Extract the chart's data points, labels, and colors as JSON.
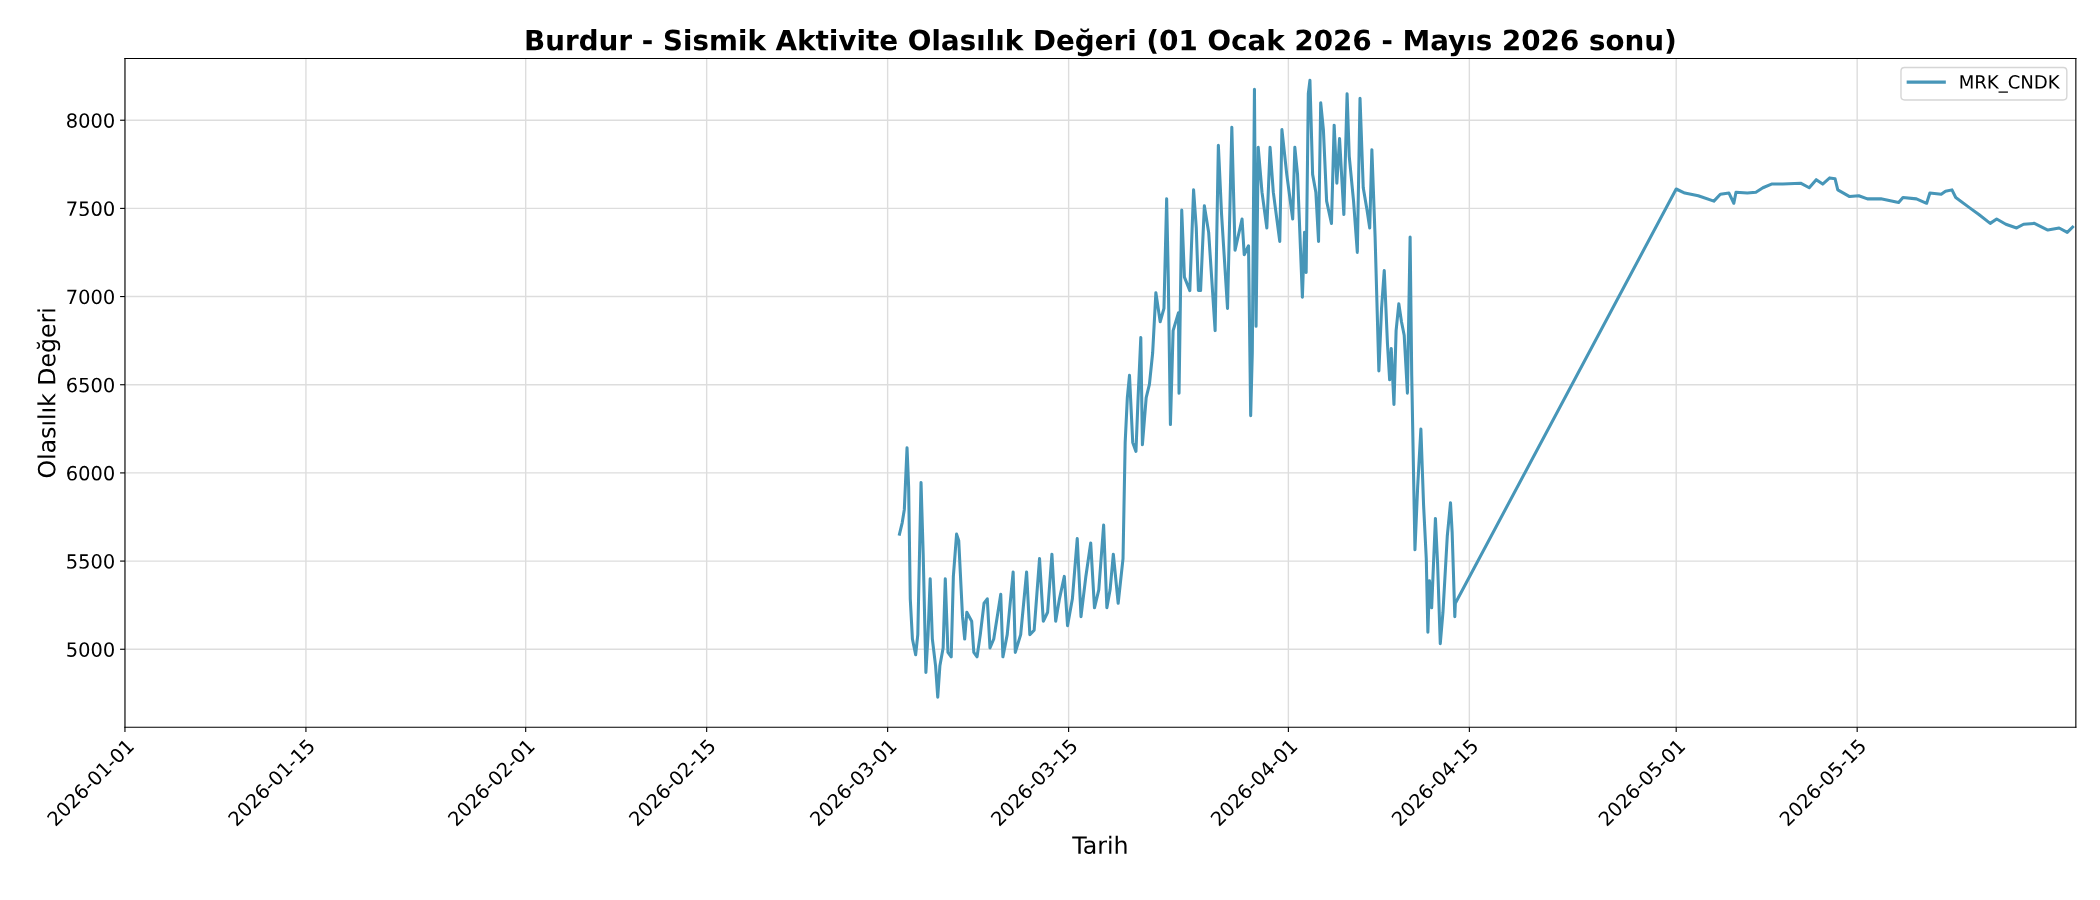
{
  "chart_data": {
    "type": "line",
    "title": "Burdur - Sismik Aktivite Olasılık Değeri (01 Ocak 2026 - Mayıs 2026 sonu)",
    "xlabel": "Tarih",
    "ylabel": "Olasılık Değeri",
    "xlim": [
      "2026-01-01",
      "2026-05-31T22:00"
    ],
    "ylim": [
      4558,
      8350
    ],
    "xticks": [
      "2026-01-01",
      "2026-01-15",
      "2026-02-01",
      "2026-02-15",
      "2026-03-01",
      "2026-03-15",
      "2026-04-01",
      "2026-04-15",
      "2026-05-01",
      "2026-05-15"
    ],
    "yticks": [
      5000,
      5500,
      6000,
      6500,
      7000,
      7500,
      8000
    ],
    "grid": true,
    "legend": "top right",
    "line_style": "solid",
    "marker": "none",
    "series": [
      {
        "name": "MRK_CNDK",
        "color": "#4796b8",
        "x": [
          "2026-03-01T22:00",
          "2026-03-02T03:00",
          "2026-03-02T07:00",
          "2026-03-02T12:00",
          "2026-03-02T15:00",
          "2026-03-02T18:00",
          "2026-03-02T22:00",
          "2026-03-03T04:00",
          "2026-03-03T08:00",
          "2026-03-03T14:00",
          "2026-03-03T18:00",
          "2026-03-03T23:00",
          "2026-03-04T03:00",
          "2026-03-04T07:00",
          "2026-03-04T11:00",
          "2026-03-04T17:00",
          "2026-03-04T21:00",
          "2026-03-05T01:00",
          "2026-03-05T07:00",
          "2026-03-05T11:00",
          "2026-03-05T16:00",
          "2026-03-05T22:00",
          "2026-03-06T02:00",
          "2026-03-06T08:00",
          "2026-03-06T12:00",
          "2026-03-06T19:00",
          "2026-03-06T23:00",
          "2026-03-07T03:00",
          "2026-03-07T12:00",
          "2026-03-07T16:00",
          "2026-03-07T22:00",
          "2026-03-08T04:00",
          "2026-03-08T11:00",
          "2026-03-08T17:00",
          "2026-03-08T22:00",
          "2026-03-09T05:00",
          "2026-03-09T18:00",
          "2026-03-09T22:00",
          "2026-03-10T06:00",
          "2026-03-10T17:00",
          "2026-03-10T21:00",
          "2026-03-11T07:00",
          "2026-03-11T18:00",
          "2026-03-12T00:00",
          "2026-03-12T08:00",
          "2026-03-12T18:00",
          "2026-03-13T01:00",
          "2026-03-13T09:00",
          "2026-03-13T17:00",
          "2026-03-14T00:00",
          "2026-03-14T07:00",
          "2026-03-14T16:00",
          "2026-03-14T22:00",
          "2026-03-15T07:00",
          "2026-03-15T16:00",
          "2026-03-15T23:00",
          "2026-03-16T08:00",
          "2026-03-16T17:00",
          "2026-03-17T00:00",
          "2026-03-17T08:00",
          "2026-03-17T17:00",
          "2026-03-17T23:00",
          "2026-03-18T05:00",
          "2026-03-18T11:00",
          "2026-03-18T20:00",
          "2026-03-19T05:00",
          "2026-03-19T09:00",
          "2026-03-19T13:00",
          "2026-03-19T17:00",
          "2026-03-19T23:00",
          "2026-03-20T05:00",
          "2026-03-20T09:00",
          "2026-03-20T14:00",
          "2026-03-20T17:00",
          "2026-03-21T00:00",
          "2026-03-21T06:00",
          "2026-03-21T12:00",
          "2026-03-21T18:00",
          "2026-03-22T02:00",
          "2026-03-22T09:00",
          "2026-03-22T14:00",
          "2026-03-22T17:00",
          "2026-03-22T21:00",
          "2026-03-23T02:00",
          "2026-03-23T12:00",
          "2026-03-23T13:00",
          "2026-03-23T18:00",
          "2026-03-23T23:00",
          "2026-03-24T09:00",
          "2026-03-24T16:00",
          "2026-03-24T21:00",
          "2026-03-25T01:00",
          "2026-03-25T05:00",
          "2026-03-25T12:00",
          "2026-03-25T20:00",
          "2026-03-26T08:00",
          "2026-03-26T14:00",
          "2026-03-26T20:00",
          "2026-03-27T07:00",
          "2026-03-27T15:00",
          "2026-03-27T21:00",
          "2026-03-28T10:00",
          "2026-03-28T14:00",
          "2026-03-28T22:00",
          "2026-03-29T02:00",
          "2026-03-29T05:00",
          "2026-03-29T09:00",
          "2026-03-29T12:00",
          "2026-03-29T16:00",
          "2026-03-29T23:00",
          "2026-03-30T08:00",
          "2026-03-30T14:00",
          "2026-03-30T20:00",
          "2026-03-31T08:00",
          "2026-03-31T12:00",
          "2026-03-31T21:00",
          "2026-04-01T08:00",
          "2026-04-01T12:00",
          "2026-04-01T17:00",
          "2026-04-02T02:00",
          "2026-04-02T06:00",
          "2026-04-02T09:00",
          "2026-04-02T13:00",
          "2026-04-02T16:00",
          "2026-04-02T21:00",
          "2026-04-03T03:00",
          "2026-04-03T08:00",
          "2026-04-03T12:00",
          "2026-04-03T17:00",
          "2026-04-03T23:00",
          "2026-04-04T08:00",
          "2026-04-04T13:00",
          "2026-04-04T18:00",
          "2026-04-04T23:00",
          "2026-04-05T07:00",
          "2026-04-05T13:00",
          "2026-04-05T17:00",
          "2026-04-06T01:00",
          "2026-04-06T08:00",
          "2026-04-06T13:00",
          "2026-04-06T19:00",
          "2026-04-07T02:00",
          "2026-04-07T07:00",
          "2026-04-07T11:00",
          "2026-04-07T17:00",
          "2026-04-08T00:00",
          "2026-04-08T05:00",
          "2026-04-08T10:00",
          "2026-04-08T16:00",
          "2026-04-08T20:00",
          "2026-04-08T23:00",
          "2026-04-09T04:00",
          "2026-04-09T08:00",
          "2026-04-09T13:00",
          "2026-04-09T18:00",
          "2026-04-09T23:00",
          "2026-04-10T05:00",
          "2026-04-10T10:00",
          "2026-04-10T13:00",
          "2026-04-10T19:00",
          "2026-04-11T00:00",
          "2026-04-11T06:00",
          "2026-04-11T11:00",
          "2026-04-11T16:00",
          "2026-04-11T19:00",
          "2026-04-11T22:00",
          "2026-04-12T02:00",
          "2026-04-12T09:00",
          "2026-04-12T13:00",
          "2026-04-12T18:00",
          "2026-04-12T23:00",
          "2026-04-13T07:00",
          "2026-04-13T13:00",
          "2026-04-13T16:00",
          "2026-04-13T21:00",
          "2026-04-13T22:00",
          "2026-05-01T00:00",
          "2026-05-01T16:00",
          "2026-05-02T17:00",
          "2026-05-03T22:00",
          "2026-05-04T10:00",
          "2026-05-05T02:00",
          "2026-05-05T11:00",
          "2026-05-05T15:00",
          "2026-05-06T12:00",
          "2026-05-07T04:00",
          "2026-05-07T17:00",
          "2026-05-08T09:00",
          "2026-05-09T06:00",
          "2026-05-10T15:00",
          "2026-05-11T07:00",
          "2026-05-11T20:00",
          "2026-05-12T08:00",
          "2026-05-12T21:00",
          "2026-05-13T07:00",
          "2026-05-13T12:00",
          "2026-05-14T10:00",
          "2026-05-15T03:00",
          "2026-05-15T19:00",
          "2026-05-16T20:00",
          "2026-05-18T05:00",
          "2026-05-18T13:00",
          "2026-05-19T14:00",
          "2026-05-20T09:00",
          "2026-05-20T15:00",
          "2026-05-21T12:00",
          "2026-05-21T20:00",
          "2026-05-22T08:00",
          "2026-05-22T15:00",
          "2026-05-23T17:00",
          "2026-05-24T10:00",
          "2026-05-25T07:00",
          "2026-05-25T19:00",
          "2026-05-26T12:00",
          "2026-05-27T08:00",
          "2026-05-27T21:00",
          "2026-05-28T17:00",
          "2026-05-29T18:00",
          "2026-05-30T15:00",
          "2026-05-31T06:00",
          "2026-05-31T16:00"
        ],
        "values": [
          5653,
          5717,
          5793,
          6143,
          5919,
          5286,
          5058,
          4969,
          5083,
          5945,
          5539,
          4868,
          5083,
          5400,
          5058,
          4906,
          4728,
          4906,
          5007,
          5400,
          4982,
          4957,
          5413,
          5653,
          5615,
          5185,
          5058,
          5210,
          5159,
          4982,
          4957,
          5083,
          5261,
          5286,
          5007,
          5058,
          5312,
          4957,
          5083,
          5438,
          4982,
          5083,
          5438,
          5083,
          5108,
          5514,
          5159,
          5210,
          5539,
          5159,
          5286,
          5413,
          5134,
          5286,
          5628,
          5185,
          5413,
          5603,
          5235,
          5337,
          5704,
          5235,
          5337,
          5539,
          5261,
          5514,
          6173,
          6427,
          6553,
          6173,
          6122,
          6427,
          6768,
          6160,
          6427,
          6502,
          6680,
          7022,
          6857,
          6933,
          7554,
          7110,
          6274,
          6807,
          6908,
          6452,
          7491,
          7110,
          7034,
          7605,
          7389,
          7034,
          7034,
          7515,
          7364,
          6807,
          7858,
          7465,
          6933,
          7960,
          7263,
          7440,
          7237,
          7288,
          6325,
          6680,
          8175,
          6832,
          7846,
          7592,
          7389,
          7846,
          7592,
          7313,
          7947,
          7693,
          7440,
          7846,
          7693,
          6996,
          7364,
          7136,
          8150,
          8226,
          7693,
          7592,
          7313,
          8099,
          7947,
          7541,
          7415,
          7972,
          7643,
          7896,
          7465,
          8150,
          7795,
          7541,
          7250,
          8124,
          7617,
          7491,
          7389,
          7833,
          7338,
          6578,
          6933,
          7148,
          6731,
          6528,
          6705,
          6388,
          6807,
          6959,
          6857,
          6781,
          6452,
          7338,
          6553,
          5565,
          5920,
          6249,
          5818,
          5514,
          5096,
          5388,
          5235,
          5742,
          5489,
          5032,
          5210,
          5641,
          5831,
          5666,
          5185,
          5261,
          7610,
          7587,
          7572,
          7541,
          7580,
          7587,
          7529,
          7592,
          7587,
          7592,
          7617,
          7638,
          7638,
          7643,
          7617,
          7663,
          7638,
          7673,
          7668,
          7605,
          7567,
          7572,
          7554,
          7554,
          7534,
          7562,
          7554,
          7529,
          7587,
          7580,
          7597,
          7605,
          7562,
          7503,
          7465,
          7415,
          7440,
          7410,
          7389,
          7410,
          7415,
          7377,
          7389,
          7364,
          7394
        ]
      }
    ]
  }
}
